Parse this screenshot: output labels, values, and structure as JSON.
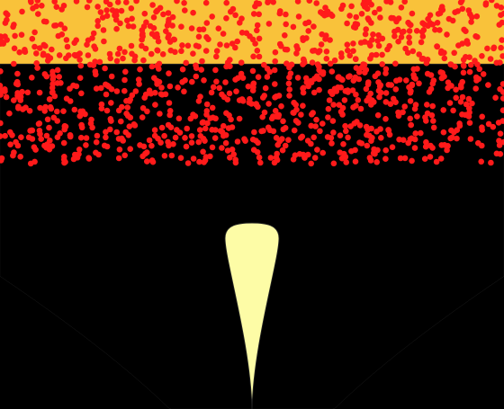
{
  "chart_data": {
    "type": "scatter",
    "title": "",
    "xlabel": "",
    "ylabel": "",
    "x_range": [
      -1,
      1
    ],
    "y_range": [
      0,
      1
    ],
    "points_color": "#ff1a1a",
    "points": {
      "count": 1150,
      "x_range": [
        -1,
        1
      ],
      "y_range": [
        0.6,
        1.0
      ],
      "seed": 7
    },
    "boundary_line_y": 0.843,
    "contours": {
      "levels": 14,
      "colors": [
        "#f7e373",
        "#f6d860",
        "#f5c542",
        "#f3b13a",
        "#f09a36",
        "#e9853a",
        "#dd6d43",
        "#cc5a4f",
        "#b6485a",
        "#9c3a62",
        "#7e2e66",
        "#5f2465",
        "#3f1a5a",
        "#000000"
      ],
      "outer_shift": [
        0.0,
        -0.03,
        -0.06,
        -0.09,
        -0.12,
        -0.15,
        -0.18,
        -0.21,
        -0.24,
        -0.27,
        -0.3,
        -0.33,
        -0.36,
        -0.39
      ]
    },
    "colors": {
      "top_band": "#f9c23a",
      "main_fill": "#f8e57a",
      "inner_lobe": "#fdfca6",
      "dark": "#000000",
      "line": "#222222"
    }
  }
}
